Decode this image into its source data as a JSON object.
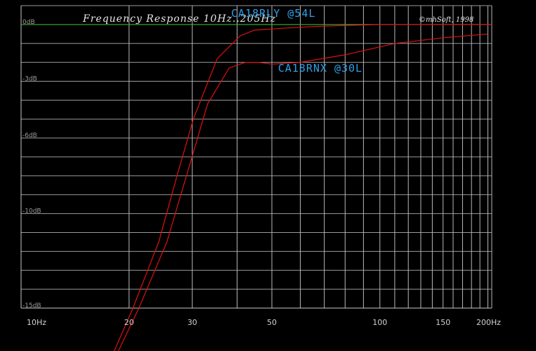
{
  "chart_data": {
    "type": "line",
    "title": "Frequency Response 10Hz..205Hz",
    "copyright": "©mhSoft, 1998",
    "xlabel": "",
    "ylabel": "",
    "x_scale": "log",
    "xlim": [
      10,
      205
    ],
    "ylim": [
      -15,
      1
    ],
    "grid": true,
    "x_major_ticks": [
      {
        "value": 10,
        "label": "10Hz"
      },
      {
        "value": 20,
        "label": "20"
      },
      {
        "value": 30,
        "label": "30"
      },
      {
        "value": 50,
        "label": "50"
      },
      {
        "value": 100,
        "label": "100"
      },
      {
        "value": 150,
        "label": "150"
      },
      {
        "value": 200,
        "label": "200Hz"
      }
    ],
    "x_minor_gridlines": [
      40,
      60,
      70,
      80,
      90,
      110,
      120,
      130,
      140,
      160,
      170,
      180,
      190,
      205
    ],
    "y_ticks": [
      {
        "value": 0,
        "label": "0dB"
      },
      {
        "value": -3,
        "label": "-3dB"
      },
      {
        "value": -6,
        "label": "-6dB"
      },
      {
        "value": -10,
        "label": "-10dB"
      },
      {
        "value": -15,
        "label": "-15dB"
      }
    ],
    "y_gridlines": [
      1,
      0,
      -1,
      -2,
      -3,
      -4,
      -5,
      -6,
      -7,
      -8,
      -9,
      -10,
      -11,
      -12,
      -13,
      -14,
      -15
    ],
    "reference_line": {
      "value": 0,
      "color": "#22aa22"
    },
    "series": [
      {
        "name": "CA18RLY @54L",
        "color": "#dd1111",
        "x": [
          17.5,
          20.5,
          24.2,
          27.2,
          30.2,
          35.2,
          40.8,
          44.6,
          52.8,
          66.0,
          80.0,
          100.0,
          205.0
        ],
        "y": [
          -18.0,
          -15.0,
          -11.5,
          -8.0,
          -5.0,
          -1.8,
          -0.6,
          -0.3,
          -0.2,
          -0.1,
          -0.05,
          0.0,
          0.0
        ]
      },
      {
        "name": "CA18RNX @30L",
        "color": "#dd1111",
        "x": [
          17.9,
          21.3,
          25.5,
          28.9,
          33.1,
          38.0,
          42.2,
          46.0,
          50.0,
          60.0,
          80.0,
          110.0,
          150.0,
          200.0
        ],
        "y": [
          -18.0,
          -15.0,
          -11.5,
          -8.0,
          -4.2,
          -2.3,
          -2.0,
          -2.0,
          -2.1,
          -2.0,
          -1.6,
          -1.0,
          -0.7,
          -0.5
        ]
      }
    ],
    "annotations": [
      {
        "text": "CA18RLY @54L",
        "x": 38.5,
        "y": 0.4
      },
      {
        "text": "CA18RNX @30L",
        "x": 52.0,
        "y": -2.5
      }
    ]
  }
}
